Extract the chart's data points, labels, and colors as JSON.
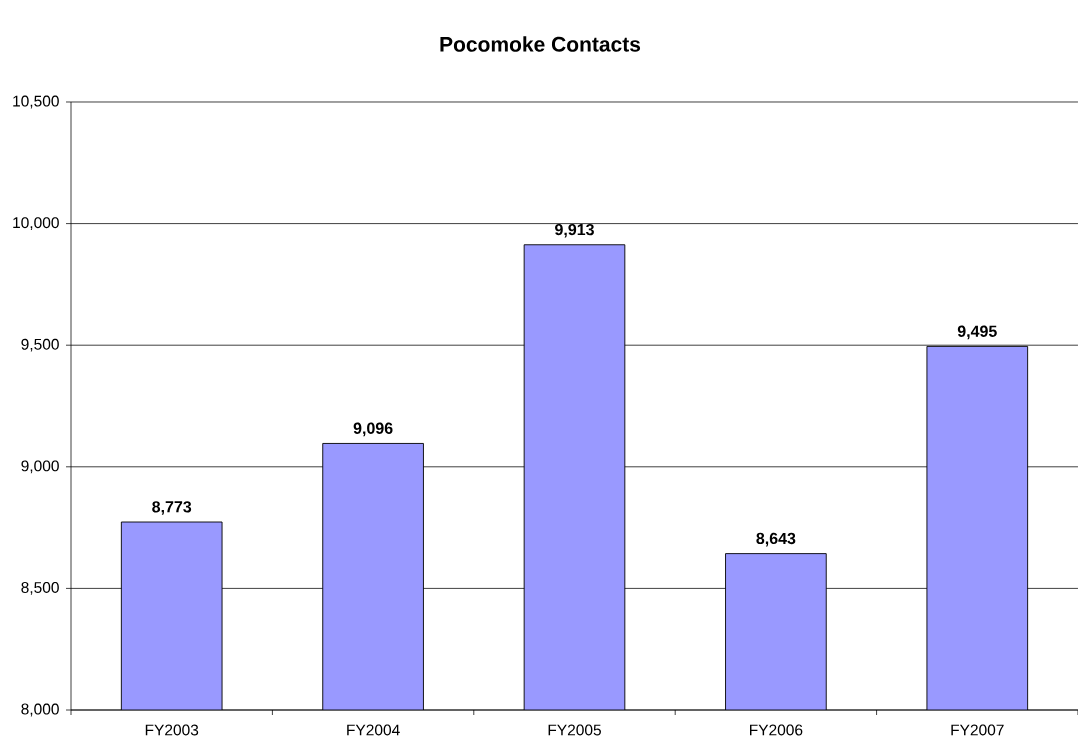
{
  "chart_data": {
    "type": "bar",
    "title": "Pocomoke Contacts",
    "categories": [
      "FY2003",
      "FY2004",
      "FY2005",
      "FY2006",
      "FY2007"
    ],
    "values": [
      8773,
      9096,
      9913,
      8643,
      9495
    ],
    "value_labels": [
      "8,773",
      "9,096",
      "9,913",
      "8,643",
      "9,495"
    ],
    "color": "#9999ff",
    "ylim": [
      8000,
      10500
    ],
    "yticks": [
      {
        "value": 8000,
        "label": "8,000"
      },
      {
        "value": 8500,
        "label": "8,500"
      },
      {
        "value": 9000,
        "label": "9,000"
      },
      {
        "value": 9500,
        "label": "9,500"
      },
      {
        "value": 10000,
        "label": "10,000"
      },
      {
        "value": 10500,
        "label": "10,500"
      }
    ],
    "grid": "y"
  }
}
